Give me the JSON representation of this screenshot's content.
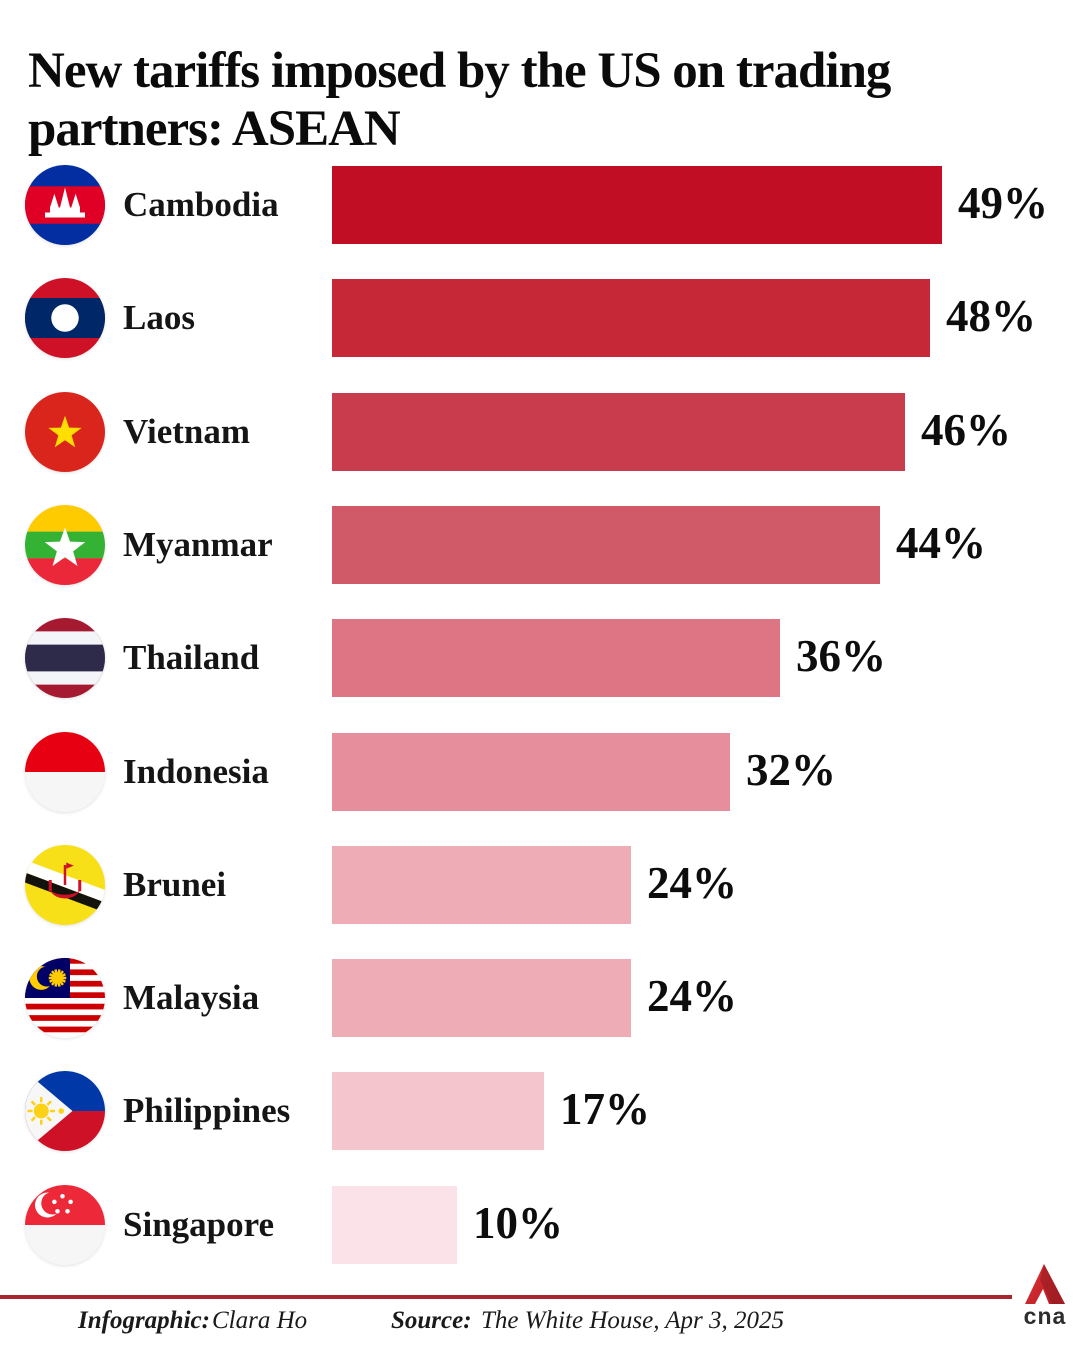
{
  "chart_data": {
    "type": "bar",
    "orientation": "horizontal",
    "title": "New tariffs imposed by the US on trading partners: ASEAN",
    "categories": [
      "Cambodia",
      "Laos",
      "Vietnam",
      "Myanmar",
      "Thailand",
      "Indonesia",
      "Brunei",
      "Malaysia",
      "Philippines",
      "Singapore"
    ],
    "values": [
      49,
      48,
      46,
      44,
      36,
      32,
      24,
      24,
      17,
      10
    ],
    "value_labels": [
      "49%",
      "48%",
      "46%",
      "44%",
      "36%",
      "32%",
      "24%",
      "24%",
      "17%",
      "10%"
    ],
    "unit": "%",
    "xlim": [
      0,
      49
    ],
    "grid": false,
    "legend": false,
    "bar_colors": [
      "#c20e24",
      "#c62838",
      "#c93c4e",
      "#d15a68",
      "#dd7584",
      "#e68e9b",
      "#eeacb6",
      "#eeacb6",
      "#f4c5cd",
      "#fbe2e8"
    ],
    "flag_ids": [
      "cambodia",
      "laos",
      "vietnam",
      "myanmar",
      "thailand",
      "indonesia",
      "brunei",
      "malaysia",
      "philippines",
      "singapore"
    ]
  },
  "footer": {
    "infographic_label": "Infographic:",
    "infographic_value": "Clara Ho",
    "source_label": "Source:",
    "source_value": "The White House, Apr 3, 2025",
    "rule_color": "#a92430",
    "logo_text": "cna"
  }
}
